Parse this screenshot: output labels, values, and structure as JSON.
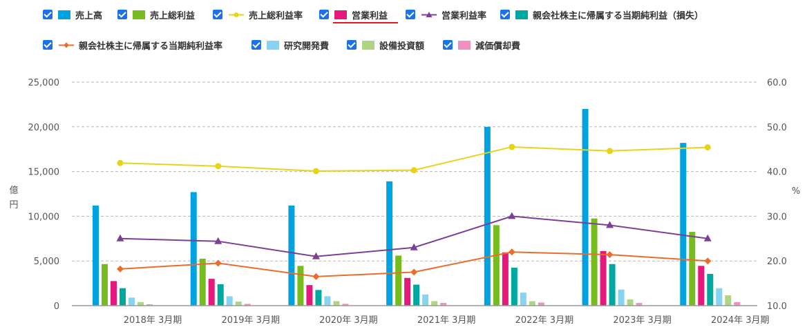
{
  "legend": {
    "items": [
      {
        "label": "売上高",
        "kind": "bar",
        "color": "#00a3e0"
      },
      {
        "label": "売上総利益",
        "kind": "bar",
        "color": "#77bc1f"
      },
      {
        "label": "売上総利益率",
        "kind": "line",
        "marker": "circle",
        "color": "#e8d417"
      },
      {
        "label": "営業利益",
        "kind": "bar",
        "color": "#e5197c",
        "active": true
      },
      {
        "label": "営業利益率",
        "kind": "line",
        "marker": "triangle",
        "color": "#7b3f98"
      },
      {
        "label": "親会社株主に帰属する当期純利益（損失）",
        "kind": "bar",
        "color": "#00a8a0"
      },
      {
        "label": "親会社株主に帰属する当期純利益率",
        "kind": "line",
        "marker": "diamond",
        "color": "#ec6c2d"
      },
      {
        "label": "研究開発費",
        "kind": "bar",
        "color": "#86d4f2"
      },
      {
        "label": "設備投資額",
        "kind": "bar",
        "color": "#aed581"
      },
      {
        "label": "減価償却費",
        "kind": "bar",
        "color": "#f08fc0"
      }
    ]
  },
  "chart_data": {
    "type": "bar",
    "categories": [
      "2018年 3月期",
      "2019年 3月期",
      "2020年 3月期",
      "2021年 3月期",
      "2022年 3月期",
      "2023年 3月期",
      "2024年 3月期"
    ],
    "left_axis": {
      "label": "億\n円",
      "min": 0,
      "max": 25000,
      "ticks": [
        "0",
        "5,000",
        "10,000",
        "15,000",
        "20,000",
        "25,000"
      ],
      "tick_values": [
        0,
        5000,
        10000,
        15000,
        20000,
        25000
      ]
    },
    "right_axis": {
      "label": "%",
      "min": 10,
      "max": 60,
      "ticks": [
        "10.0",
        "20.0",
        "30.0",
        "40.0",
        "50.0",
        "60.0"
      ],
      "tick_values": [
        10,
        20,
        30,
        40,
        50,
        60
      ]
    },
    "grid": true,
    "legend_position": "top",
    "bar_series": [
      {
        "name": "売上高",
        "color": "#00a3e0",
        "values": [
          11200,
          12700,
          11200,
          13900,
          20000,
          22000,
          18200
        ]
      },
      {
        "name": "売上総利益",
        "color": "#77bc1f",
        "values": [
          4650,
          5250,
          4450,
          5600,
          9000,
          9750,
          8250
        ]
      },
      {
        "name": "営業利益",
        "color": "#e5197c",
        "values": [
          2750,
          3000,
          2300,
          3100,
          5950,
          6100,
          4450
        ]
      },
      {
        "name": "親会社株主に帰属する当期純利益（損失）",
        "color": "#00a8a0",
        "values": [
          1950,
          2400,
          1750,
          2350,
          4250,
          4650,
          3550
        ]
      },
      {
        "name": "研究開発費",
        "color": "#86d4f2",
        "values": [
          900,
          1050,
          1050,
          1250,
          1450,
          1800,
          1950
        ]
      },
      {
        "name": "設備投資額",
        "color": "#aed581",
        "values": [
          400,
          450,
          500,
          500,
          500,
          700,
          1150
        ]
      },
      {
        "name": "減価償却費",
        "color": "#f08fc0",
        "values": [
          150,
          200,
          200,
          300,
          350,
          300,
          400
        ]
      }
    ],
    "line_series": [
      {
        "name": "売上総利益率",
        "color": "#e8d417",
        "marker": "circle",
        "values": [
          41.9,
          41.2,
          40.1,
          40.3,
          45.5,
          44.6,
          45.4
        ]
      },
      {
        "name": "営業利益率",
        "color": "#7b3f98",
        "marker": "triangle",
        "values": [
          25.0,
          24.4,
          21.0,
          23.0,
          30.0,
          28.0,
          25.0
        ]
      },
      {
        "name": "親会社株主に帰属する当期純利益率",
        "color": "#ec6c2d",
        "marker": "diamond",
        "values": [
          18.2,
          19.5,
          16.5,
          17.5,
          22.0,
          21.4,
          20.0
        ]
      }
    ]
  }
}
